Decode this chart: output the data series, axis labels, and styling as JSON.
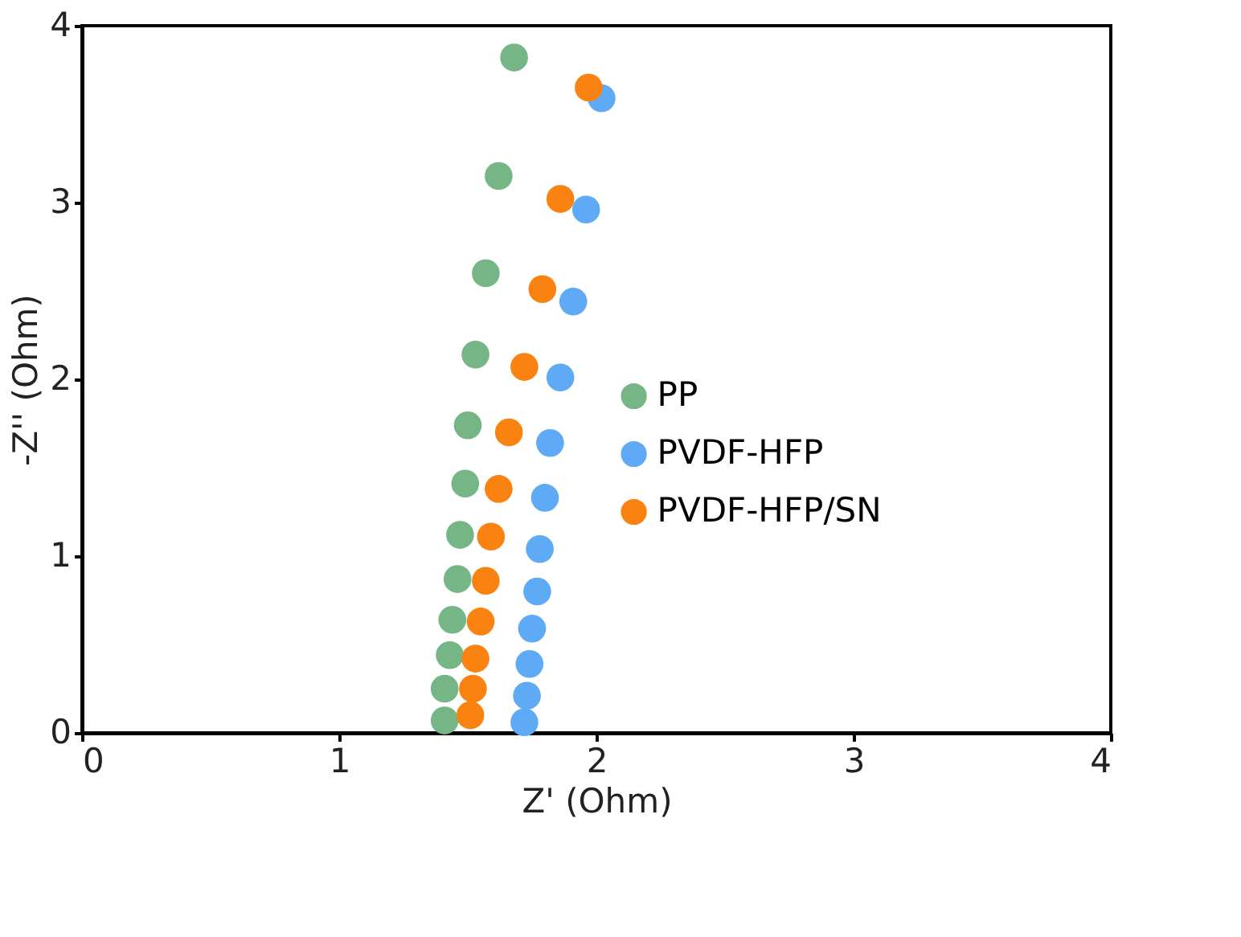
{
  "chart_data": {
    "type": "scatter",
    "xlabel": "Z' (Ohm)",
    "ylabel": "-Z'' (Ohm)",
    "xlim": [
      0,
      4
    ],
    "ylim": [
      0,
      4
    ],
    "xticks": [
      0,
      1,
      2,
      3,
      4
    ],
    "yticks": [
      0,
      1,
      2,
      3,
      4
    ],
    "grid": false,
    "legend": "right",
    "marker": "circle",
    "series": [
      {
        "name": "PP",
        "color": "#76b585",
        "x": [
          1.68,
          1.62,
          1.57,
          1.53,
          1.5,
          1.49,
          1.47,
          1.46,
          1.44,
          1.43,
          1.41,
          1.41
        ],
        "values": [
          3.82,
          3.15,
          2.6,
          2.14,
          1.74,
          1.41,
          1.12,
          0.87,
          0.64,
          0.44,
          0.25,
          0.07
        ]
      },
      {
        "name": "PVDF-HFP",
        "color": "#5eaaf5",
        "x": [
          2.02,
          1.96,
          1.91,
          1.86,
          1.82,
          1.8,
          1.78,
          1.77,
          1.75,
          1.74,
          1.73,
          1.72
        ],
        "values": [
          3.59,
          2.96,
          2.44,
          2.01,
          1.64,
          1.33,
          1.04,
          0.8,
          0.59,
          0.39,
          0.21,
          0.06
        ]
      },
      {
        "name": "PVDF-HFP/SN",
        "color": "#f98211",
        "x": [
          1.97,
          1.86,
          1.79,
          1.72,
          1.66,
          1.62,
          1.59,
          1.57,
          1.55,
          1.53,
          1.52,
          1.51
        ],
        "values": [
          3.65,
          3.02,
          2.51,
          2.07,
          1.7,
          1.38,
          1.11,
          0.86,
          0.63,
          0.42,
          0.25,
          0.1
        ]
      }
    ]
  }
}
